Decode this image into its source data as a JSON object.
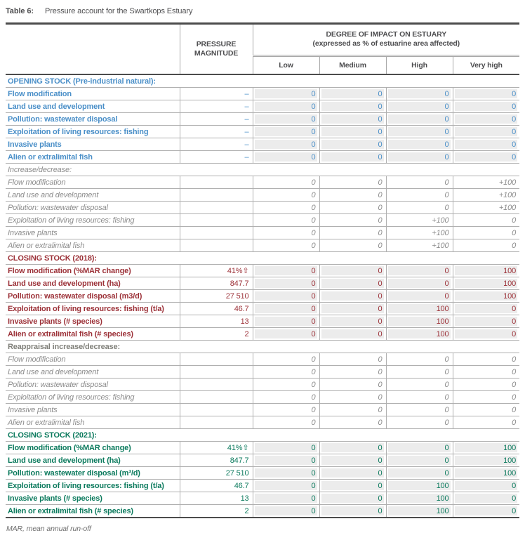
{
  "title": {
    "label": "Table 6:",
    "text": "Pressure account for the Swartkops Estuary"
  },
  "header": {
    "pressure_magnitude": "PRESSURE MAGNITUDE",
    "impact_title": "DEGREE OF IMPACT ON ESTUARY",
    "impact_subtitle": "(expressed as % of estuarine area affected)",
    "impact_levels": [
      "Low",
      "Medium",
      "High",
      "Very high"
    ]
  },
  "sections": [
    {
      "id": "opening-stock",
      "style": "opening",
      "title": "OPENING STOCK (Pre-industrial natural):",
      "shaded": true,
      "rows": [
        {
          "label": "Flow modification",
          "pressure": "–",
          "impacts": [
            "0",
            "0",
            "0",
            "0"
          ]
        },
        {
          "label": "Land use and development",
          "pressure": "–",
          "impacts": [
            "0",
            "0",
            "0",
            "0"
          ]
        },
        {
          "label": "Pollution: wastewater disposal",
          "pressure": "–",
          "impacts": [
            "0",
            "0",
            "0",
            "0"
          ]
        },
        {
          "label": "Exploitation of living resources: fishing",
          "pressure": "–",
          "impacts": [
            "0",
            "0",
            "0",
            "0"
          ]
        },
        {
          "label": "Invasive plants",
          "pressure": "–",
          "impacts": [
            "0",
            "0",
            "0",
            "0"
          ]
        },
        {
          "label": "Alien or extralimital fish",
          "pressure": "–",
          "impacts": [
            "0",
            "0",
            "0",
            "0"
          ]
        }
      ]
    },
    {
      "id": "increase-decrease",
      "style": "change",
      "title": "Increase/decrease:",
      "shaded": false,
      "rows": [
        {
          "label": "Flow modification",
          "pressure": "",
          "impacts": [
            "0",
            "0",
            "0",
            "+100"
          ]
        },
        {
          "label": "Land use and development",
          "pressure": "",
          "impacts": [
            "0",
            "0",
            "0",
            "+100"
          ]
        },
        {
          "label": "Pollution: wastewater disposal",
          "pressure": "",
          "impacts": [
            "0",
            "0",
            "0",
            "+100"
          ]
        },
        {
          "label": "Exploitation of living resources: fishing",
          "pressure": "",
          "impacts": [
            "0",
            "0",
            "+100",
            "0"
          ]
        },
        {
          "label": "Invasive plants",
          "pressure": "",
          "impacts": [
            "0",
            "0",
            "+100",
            "0"
          ]
        },
        {
          "label": "Alien or extralimital fish",
          "pressure": "",
          "impacts": [
            "0",
            "0",
            "+100",
            "0"
          ]
        }
      ]
    },
    {
      "id": "closing-stock-2018",
      "style": "closing2018",
      "title": "CLOSING STOCK (2018):",
      "shaded": true,
      "rows": [
        {
          "label": "Flow modification (%MAR change)",
          "pressure": "41%⇧",
          "impacts": [
            "0",
            "0",
            "0",
            "100"
          ]
        },
        {
          "label": "Land use and development (ha)",
          "pressure": "847.7",
          "impacts": [
            "0",
            "0",
            "0",
            "100"
          ]
        },
        {
          "label": "Pollution: wastewater disposal (m3/d)",
          "pressure": "27 510",
          "impacts": [
            "0",
            "0",
            "0",
            "100"
          ]
        },
        {
          "label": "Exploitation of living resources: fishing (t/a)",
          "pressure": "46.7",
          "impacts": [
            "0",
            "0",
            "100",
            "0"
          ]
        },
        {
          "label": "Invasive plants (# species)",
          "pressure": "13",
          "impacts": [
            "0",
            "0",
            "100",
            "0"
          ]
        },
        {
          "label": "Alien or extralimital fish (# species)",
          "pressure": "2",
          "impacts": [
            "0",
            "0",
            "100",
            "0"
          ]
        }
      ]
    },
    {
      "id": "reappraisal-increase-decrease",
      "style": "reappraisal",
      "title": "Reappraisal increase/decrease:",
      "shaded": false,
      "rows": [
        {
          "label": "Flow modification",
          "pressure": "",
          "impacts": [
            "0",
            "0",
            "0",
            "0"
          ]
        },
        {
          "label": "Land use and development",
          "pressure": "",
          "impacts": [
            "0",
            "0",
            "0",
            "0"
          ]
        },
        {
          "label": "Pollution: wastewater disposal",
          "pressure": "",
          "impacts": [
            "0",
            "0",
            "0",
            "0"
          ]
        },
        {
          "label": "Exploitation of living resources: fishing",
          "pressure": "",
          "impacts": [
            "0",
            "0",
            "0",
            "0"
          ]
        },
        {
          "label": "Invasive plants",
          "pressure": "",
          "impacts": [
            "0",
            "0",
            "0",
            "0"
          ]
        },
        {
          "label": "Alien or extralimital fish",
          "pressure": "",
          "impacts": [
            "0",
            "0",
            "0",
            "0"
          ]
        }
      ]
    },
    {
      "id": "closing-stock-2021",
      "style": "closing2021",
      "title": "CLOSING STOCK (2021):",
      "shaded": true,
      "rows": [
        {
          "label": "Flow modification (%MAR change)",
          "pressure": "41%⇧",
          "impacts": [
            "0",
            "0",
            "0",
            "100"
          ]
        },
        {
          "label": "Land use and development (ha)",
          "pressure": "847.7",
          "impacts": [
            "0",
            "0",
            "0",
            "100"
          ]
        },
        {
          "label": "Pollution: wastewater disposal (m³/d)",
          "pressure": "27 510",
          "impacts": [
            "0",
            "0",
            "0",
            "100"
          ]
        },
        {
          "label": "Exploitation of living resources: fishing (t/a)",
          "pressure": "46.7",
          "impacts": [
            "0",
            "0",
            "100",
            "0"
          ]
        },
        {
          "label": "Invasive plants (# species)",
          "pressure": "13",
          "impacts": [
            "0",
            "0",
            "100",
            "0"
          ]
        },
        {
          "label": "Alien or extralimital fish (# species)",
          "pressure": "2",
          "impacts": [
            "0",
            "0",
            "100",
            "0"
          ]
        }
      ]
    }
  ],
  "footnote": "MAR, mean annual run-off",
  "colors": {
    "opening_blue": "#4a8fc8",
    "change_gray": "#8c8c8c",
    "closing_2018_maroon": "#9c3138",
    "reappraisal_gray": "#80807a",
    "closing_2021_green": "#0b7a5d",
    "shaded_cell": "#ececec",
    "grid_line": "#b0b0b0",
    "heavy_rule": "#4c4c4c"
  }
}
